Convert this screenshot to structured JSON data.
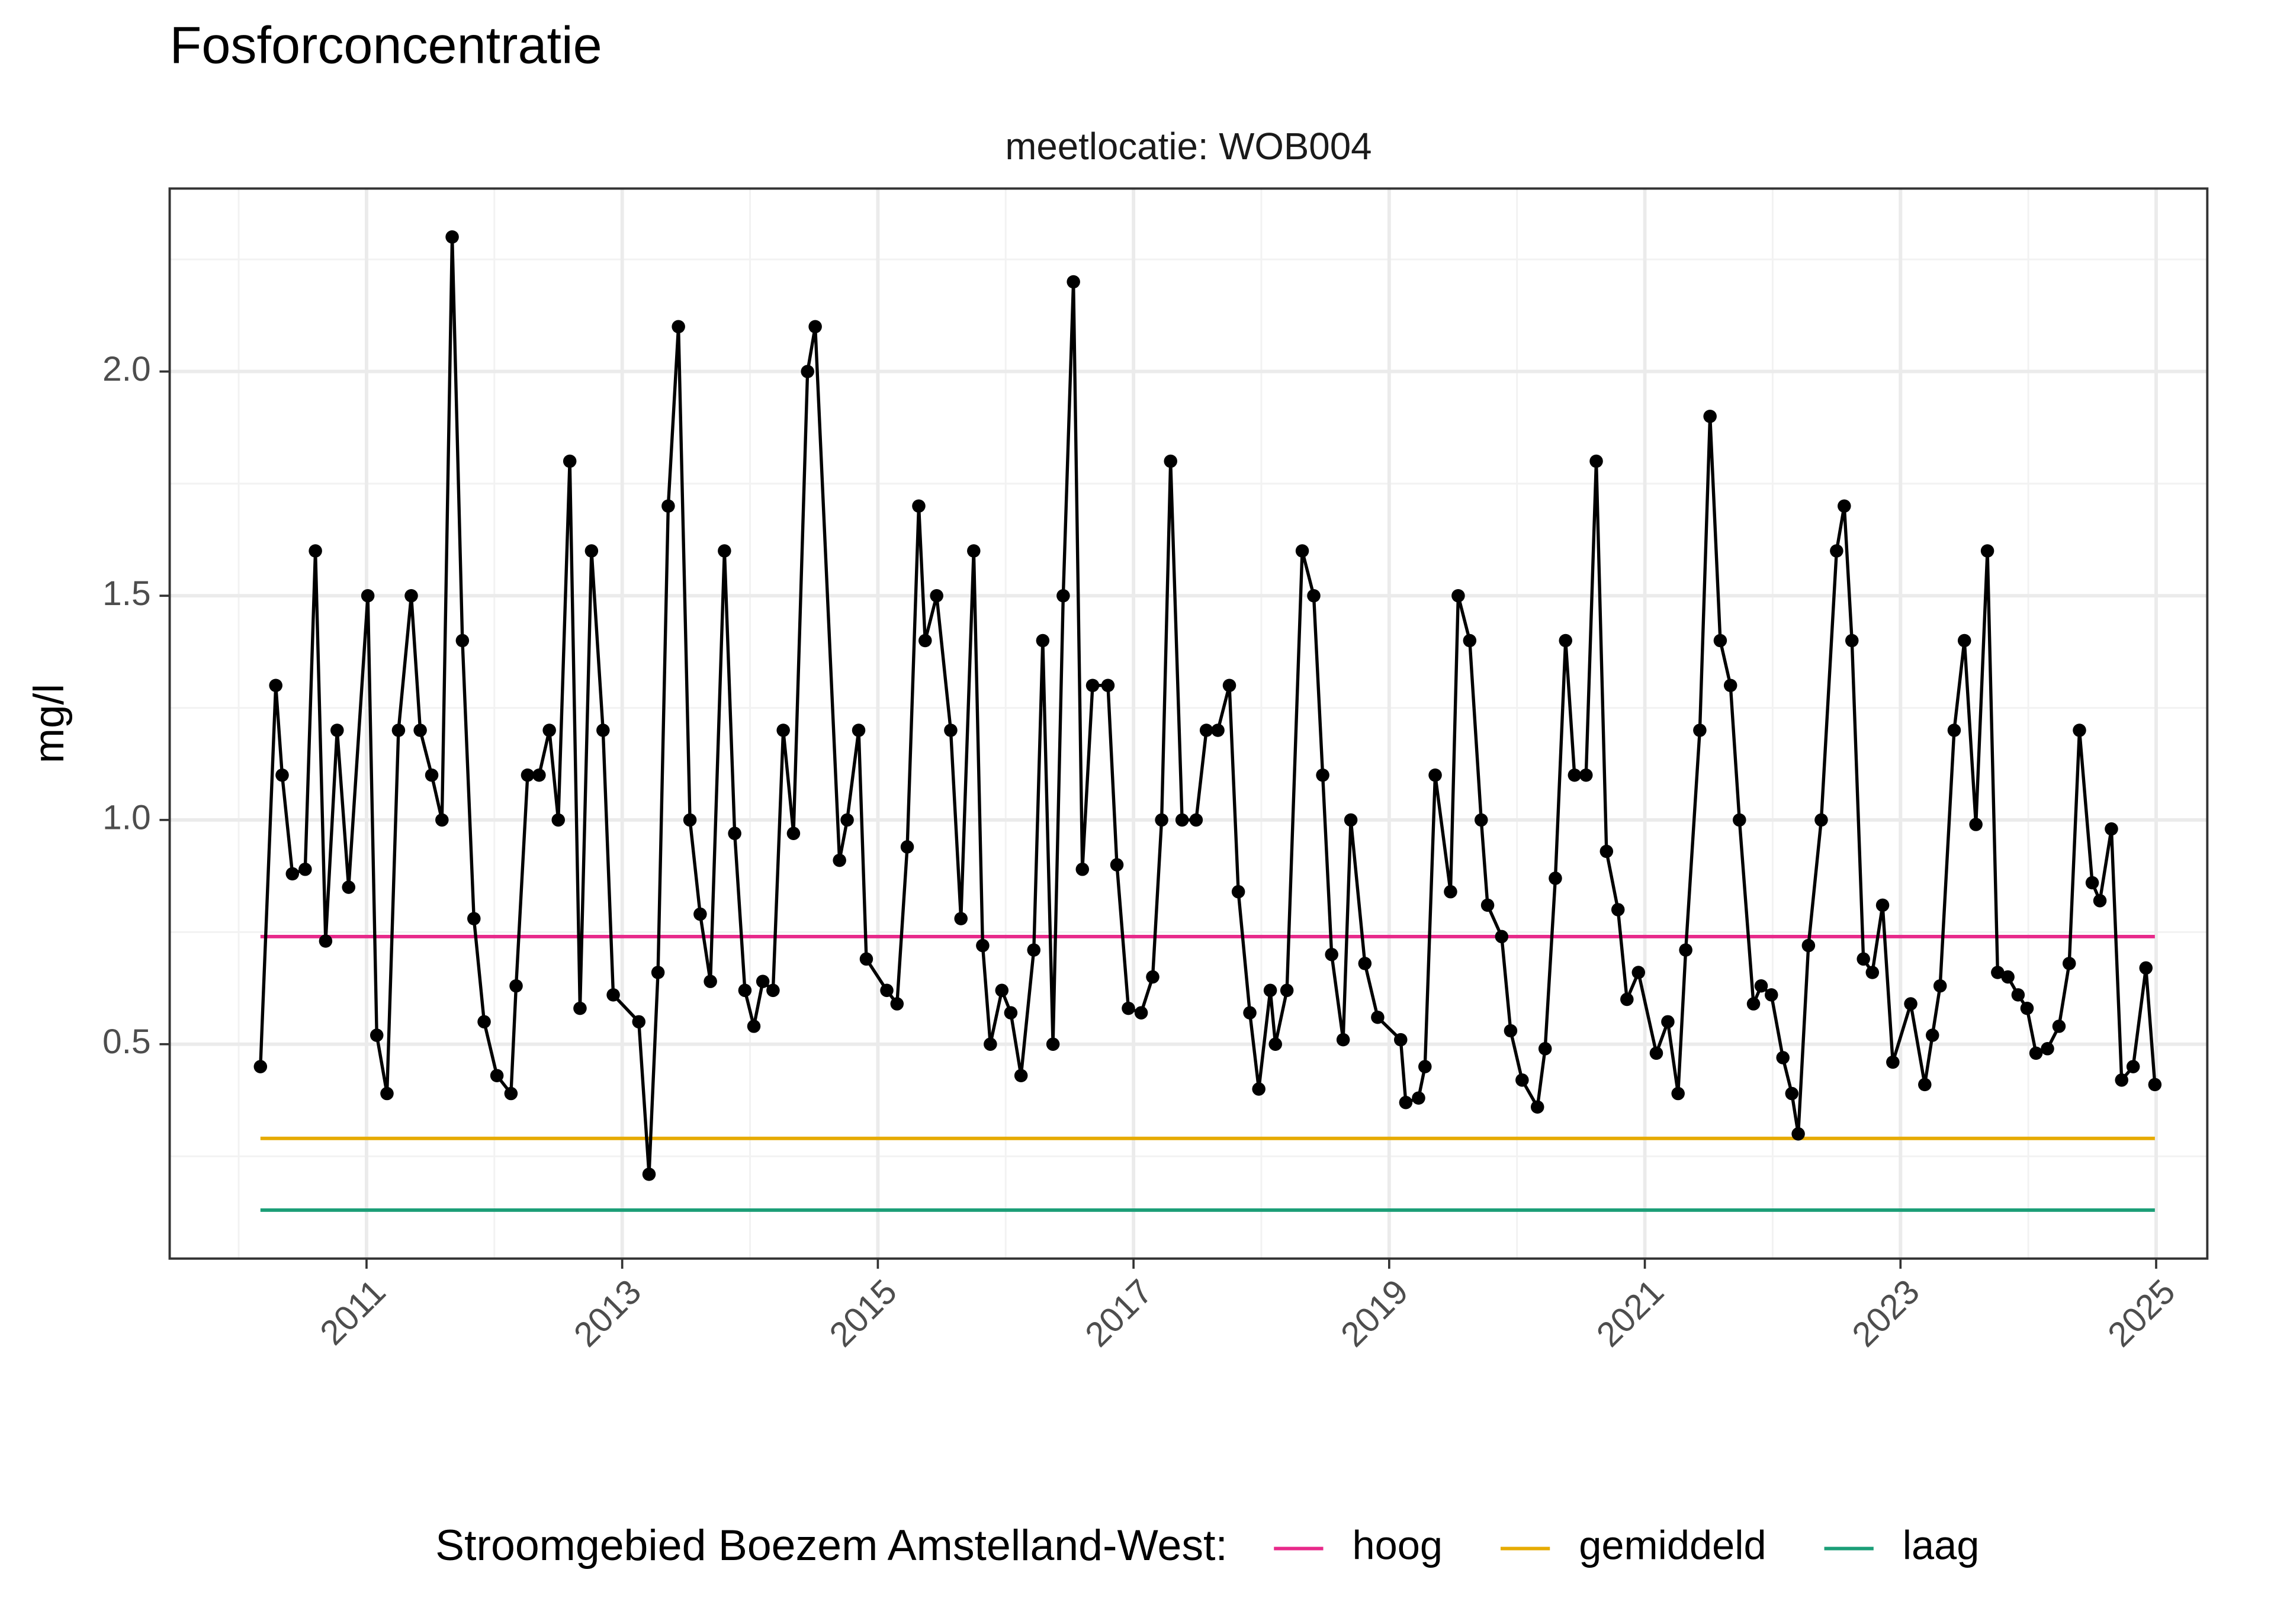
{
  "chart_data": {
    "type": "line",
    "title": "Fosforconcentratie",
    "subtitle": "meetlocatie: WOB004",
    "y_label": "mg/l",
    "legend_title": "Stroomgebied Boezem Amstelland-West:",
    "legend": "bottom",
    "grid": true,
    "xlim": [
      2009.46,
      2025.4
    ],
    "xticks": [
      2011,
      2013,
      2015,
      2017,
      2019,
      2021,
      2023,
      2025
    ],
    "ylim": [
      0.022,
      2.408
    ],
    "yticks": [
      0.5,
      {
        "value": 1,
        "label": "1.0"
      },
      1.5,
      {
        "value": 2,
        "label": "2.0"
      }
    ],
    "series": [
      {
        "color": "#000000",
        "markers": true,
        "x": [
          2010.17,
          2010.29,
          2010.34,
          2010.42,
          2010.52,
          2010.6,
          2010.68,
          2010.77,
          2010.86,
          2011.01,
          2011.08,
          2011.16,
          2011.25,
          2011.35,
          2011.42,
          2011.51,
          2011.59,
          2011.67,
          2011.75,
          2011.84,
          2011.92,
          2012.02,
          2012.13,
          2012.17,
          2012.26,
          2012.35,
          2012.43,
          2012.5,
          2012.59,
          2012.67,
          2012.76,
          2012.85,
          2012.93,
          2013.13,
          2013.21,
          2013.28,
          2013.36,
          2013.44,
          2013.53,
          2013.61,
          2013.69,
          2013.8,
          2013.88,
          2013.96,
          2014.03,
          2014.1,
          2014.18,
          2014.26,
          2014.34,
          2014.45,
          2014.51,
          2014.7,
          2014.76,
          2014.85,
          2014.91,
          2015.07,
          2015.15,
          2015.23,
          2015.32,
          2015.37,
          2015.46,
          2015.57,
          2015.65,
          2015.75,
          2015.82,
          2015.88,
          2015.97,
          2016.04,
          2016.12,
          2016.22,
          2016.29,
          2016.37,
          2016.45,
          2016.53,
          2016.6,
          2016.68,
          2016.8,
          2016.87,
          2016.96,
          2017.06,
          2017.15,
          2017.22,
          2017.29,
          2017.38,
          2017.49,
          2017.57,
          2017.66,
          2017.75,
          2017.82,
          2017.91,
          2017.98,
          2018.07,
          2018.11,
          2018.2,
          2018.32,
          2018.41,
          2018.48,
          2018.55,
          2018.64,
          2018.7,
          2018.81,
          2018.91,
          2019.09,
          2019.13,
          2019.23,
          2019.28,
          2019.36,
          2019.48,
          2019.54,
          2019.63,
          2019.72,
          2019.77,
          2019.88,
          2019.95,
          2020.04,
          2020.16,
          2020.22,
          2020.3,
          2020.38,
          2020.45,
          2020.54,
          2020.62,
          2020.7,
          2020.79,
          2020.86,
          2020.95,
          2021.09,
          2021.18,
          2021.26,
          2021.32,
          2021.43,
          2021.51,
          2021.59,
          2021.67,
          2021.74,
          2021.85,
          2021.91,
          2021.99,
          2022.08,
          2022.15,
          2022.2,
          2022.28,
          2022.38,
          2022.5,
          2022.56,
          2022.62,
          2022.71,
          2022.78,
          2022.86,
          2022.94,
          2023.08,
          2023.19,
          2023.25,
          2023.31,
          2023.42,
          2023.5,
          2023.59,
          2023.68,
          2023.76,
          2023.84,
          2023.92,
          2023.99,
          2024.06,
          2024.15,
          2024.24,
          2024.32,
          2024.4,
          2024.5,
          2024.56,
          2024.65,
          2024.73,
          2024.82,
          2024.92,
          2024.99
        ],
        "values": [
          0.45,
          1.3,
          1.1,
          0.88,
          0.89,
          1.6,
          0.73,
          1.2,
          0.85,
          1.5,
          0.52,
          0.39,
          1.2,
          1.5,
          1.2,
          1.1,
          1.0,
          2.3,
          1.4,
          0.78,
          0.55,
          0.43,
          0.39,
          0.63,
          1.1,
          1.1,
          1.2,
          1.0,
          1.8,
          0.58,
          1.6,
          1.2,
          0.61,
          0.55,
          0.21,
          0.66,
          1.7,
          2.1,
          1.0,
          0.79,
          0.64,
          1.6,
          0.97,
          0.62,
          0.54,
          0.64,
          0.62,
          1.2,
          0.97,
          2.0,
          2.1,
          0.91,
          1.0,
          1.2,
          0.69,
          0.62,
          0.59,
          0.94,
          1.7,
          1.4,
          1.5,
          1.2,
          0.78,
          1.6,
          0.72,
          0.5,
          0.62,
          0.57,
          0.43,
          0.71,
          1.4,
          0.5,
          1.5,
          2.2,
          0.89,
          1.3,
          1.3,
          0.9,
          0.58,
          0.57,
          0.65,
          1.0,
          1.8,
          1.0,
          1.0,
          1.2,
          1.2,
          1.3,
          0.84,
          0.57,
          0.4,
          0.62,
          0.5,
          0.62,
          1.6,
          1.5,
          1.1,
          0.7,
          0.51,
          1.0,
          0.68,
          0.56,
          0.51,
          0.37,
          0.38,
          0.45,
          1.1,
          0.84,
          1.5,
          1.4,
          1.0,
          0.81,
          0.74,
          0.53,
          0.42,
          0.36,
          0.49,
          0.87,
          1.4,
          1.1,
          1.1,
          1.8,
          0.93,
          0.8,
          0.6,
          0.66,
          0.48,
          0.55,
          0.39,
          0.71,
          1.2,
          1.9,
          1.4,
          1.3,
          1.0,
          0.59,
          0.63,
          0.61,
          0.47,
          0.39,
          0.3,
          0.72,
          1.0,
          1.6,
          1.7,
          1.4,
          0.69,
          0.66,
          0.81,
          0.46,
          0.59,
          0.41,
          0.52,
          0.63,
          1.2,
          1.4,
          0.99,
          1.6,
          0.66,
          0.65,
          0.61,
          0.58,
          0.48,
          0.49,
          0.54,
          0.68,
          1.2,
          0.86,
          0.82,
          0.98,
          0.42,
          0.45,
          0.67,
          0.41
        ]
      },
      {
        "name": "hoog",
        "color": "#e7298a",
        "x": [
          2010.17,
          2024.99
        ],
        "values": [
          0.74,
          0.74
        ]
      },
      {
        "name": "gemiddeld",
        "color": "#e6ab02",
        "x": [
          2010.17,
          2024.99
        ],
        "values": [
          0.29,
          0.29
        ]
      },
      {
        "name": "laag",
        "color": "#1b9e77",
        "x": [
          2010.17,
          2024.99
        ],
        "values": [
          0.13,
          0.13
        ]
      }
    ]
  }
}
